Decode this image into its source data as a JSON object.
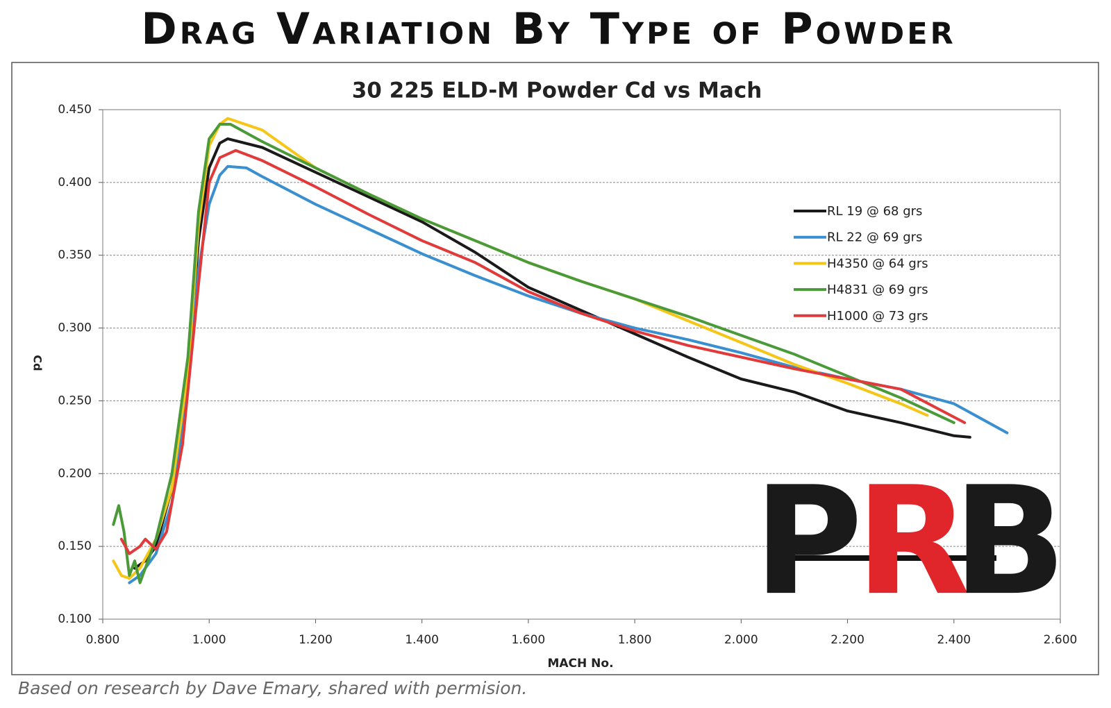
{
  "banner": "Drag Variation By Type of Powder",
  "footnote": "Based on research by Dave Emary, shared with permision.",
  "logo": {
    "letters": [
      "P",
      "R",
      "B"
    ]
  },
  "chart_data": {
    "type": "line",
    "title": "30 225 ELD-M Powder Cd vs Mach",
    "x_label": "MACH No.",
    "y_label": "Cd",
    "xlim": [
      0.8,
      2.6
    ],
    "ylim": [
      0.1,
      0.45
    ],
    "xticks": [
      {
        "value": 0.8,
        "label": "0.800"
      },
      {
        "value": 1,
        "label": "1.000"
      },
      {
        "value": 1.2,
        "label": "1.200"
      },
      {
        "value": 1.4,
        "label": "1.400"
      },
      {
        "value": 1.6,
        "label": "1.600"
      },
      {
        "value": 1.8,
        "label": "1.800"
      },
      {
        "value": 2,
        "label": "2.000"
      },
      {
        "value": 2.2,
        "label": "2.200"
      },
      {
        "value": 2.4,
        "label": "2.400"
      },
      {
        "value": 2.6,
        "label": "2.600"
      }
    ],
    "yticks": [
      {
        "value": 0.1,
        "label": "0.100"
      },
      {
        "value": 0.15,
        "label": "0.150"
      },
      {
        "value": 0.2,
        "label": "0.200"
      },
      {
        "value": 0.25,
        "label": "0.250"
      },
      {
        "value": 0.3,
        "label": "0.300"
      },
      {
        "value": 0.35,
        "label": "0.350"
      },
      {
        "value": 0.4,
        "label": "0.400"
      },
      {
        "value": 0.45,
        "label": "0.450"
      }
    ],
    "grid": true,
    "legend": "right",
    "series": [
      {
        "name": "RL 19 @ 68 grs",
        "color": "#1a1a1a",
        "x": [
          0.86,
          0.88,
          0.9,
          0.93,
          0.96,
          0.98,
          1.0,
          1.02,
          1.035,
          1.1,
          1.2,
          1.3,
          1.4,
          1.5,
          1.6,
          1.7,
          1.8,
          1.9,
          2.0,
          2.1,
          2.2,
          2.3,
          2.4,
          2.43
        ],
        "values": [
          0.135,
          0.14,
          0.15,
          0.19,
          0.27,
          0.36,
          0.41,
          0.427,
          0.43,
          0.424,
          0.407,
          0.39,
          0.373,
          0.352,
          0.328,
          0.312,
          0.296,
          0.28,
          0.265,
          0.256,
          0.243,
          0.235,
          0.226,
          0.225
        ]
      },
      {
        "name": "RL 22 @ 69 grs",
        "color": "#3a8fd0",
        "x": [
          0.85,
          0.87,
          0.9,
          0.93,
          0.96,
          0.98,
          1.0,
          1.02,
          1.035,
          1.07,
          1.1,
          1.2,
          1.3,
          1.4,
          1.5,
          1.6,
          1.7,
          1.8,
          1.9,
          2.0,
          2.1,
          2.2,
          2.3,
          2.4,
          2.5
        ],
        "values": [
          0.125,
          0.13,
          0.145,
          0.18,
          0.26,
          0.34,
          0.385,
          0.405,
          0.411,
          0.41,
          0.404,
          0.385,
          0.368,
          0.351,
          0.336,
          0.322,
          0.31,
          0.3,
          0.292,
          0.283,
          0.273,
          0.265,
          0.258,
          0.248,
          0.228
        ]
      },
      {
        "name": "H4350 @ 64 grs",
        "color": "#f5c518",
        "x": [
          0.82,
          0.835,
          0.85,
          0.87,
          0.9,
          0.93,
          0.96,
          0.98,
          1.0,
          1.02,
          1.035,
          1.1,
          1.2,
          1.3,
          1.4,
          1.5,
          1.6,
          1.7,
          1.8,
          1.9,
          2.0,
          2.1,
          2.2,
          2.3,
          2.35
        ],
        "values": [
          0.14,
          0.13,
          0.128,
          0.135,
          0.155,
          0.19,
          0.27,
          0.37,
          0.425,
          0.44,
          0.444,
          0.436,
          0.41,
          0.392,
          0.375,
          0.36,
          0.345,
          0.332,
          0.32,
          0.305,
          0.29,
          0.275,
          0.262,
          0.248,
          0.24
        ]
      },
      {
        "name": "H4831 @ 69 grs",
        "color": "#4a9a3a",
        "x": [
          0.82,
          0.83,
          0.84,
          0.85,
          0.86,
          0.87,
          0.9,
          0.93,
          0.96,
          0.98,
          1.0,
          1.02,
          1.04,
          1.1,
          1.2,
          1.3,
          1.4,
          1.5,
          1.6,
          1.7,
          1.8,
          1.9,
          2.0,
          2.1,
          2.2,
          2.3,
          2.4
        ],
        "values": [
          0.165,
          0.178,
          0.16,
          0.13,
          0.14,
          0.125,
          0.155,
          0.2,
          0.28,
          0.38,
          0.43,
          0.44,
          0.44,
          0.428,
          0.41,
          0.392,
          0.375,
          0.36,
          0.345,
          0.332,
          0.32,
          0.308,
          0.295,
          0.282,
          0.267,
          0.252,
          0.235
        ]
      },
      {
        "name": "H1000 @ 73 grs",
        "color": "#e03a3a",
        "x": [
          0.835,
          0.85,
          0.87,
          0.88,
          0.9,
          0.92,
          0.95,
          0.98,
          1.0,
          1.02,
          1.05,
          1.1,
          1.2,
          1.3,
          1.4,
          1.5,
          1.6,
          1.7,
          1.8,
          1.9,
          2.0,
          2.1,
          2.2,
          2.3,
          2.42
        ],
        "values": [
          0.155,
          0.145,
          0.15,
          0.155,
          0.148,
          0.16,
          0.22,
          0.33,
          0.4,
          0.417,
          0.422,
          0.415,
          0.397,
          0.378,
          0.36,
          0.345,
          0.325,
          0.31,
          0.298,
          0.288,
          0.28,
          0.272,
          0.265,
          0.258,
          0.235
        ]
      }
    ]
  }
}
